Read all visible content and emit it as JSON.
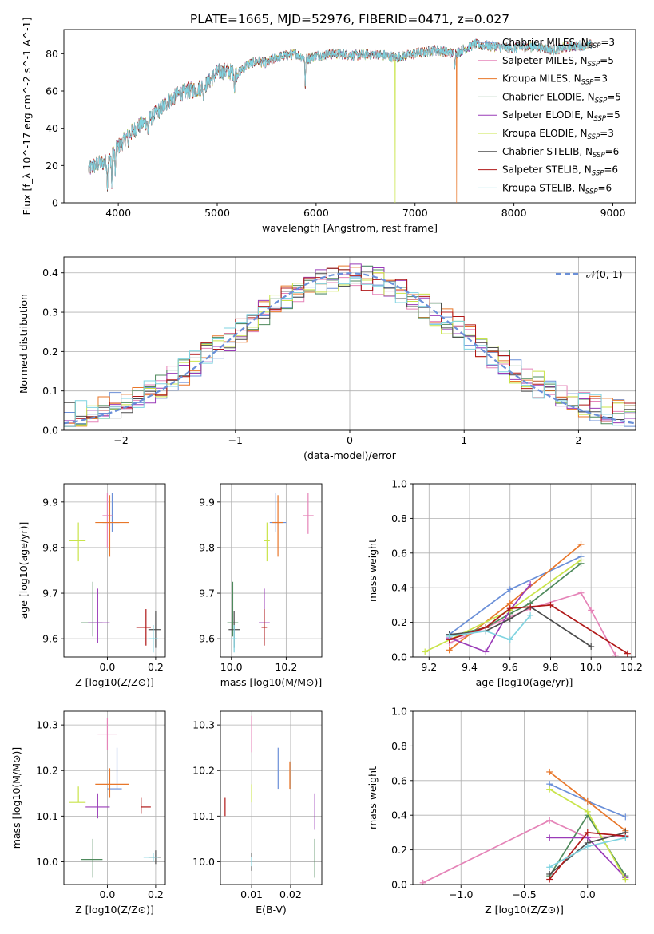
{
  "figure": {
    "title": "PLATE=1665, MJD=52976, FIBERID=0471, z=0.027"
  },
  "model_colors": {
    "Chabrier MILES": "#6a8fd8",
    "Salpeter MILES": "#e584b8",
    "Kroupa MILES": "#e8772a",
    "Chabrier ELODIE": "#4e8a5c",
    "Salpeter ELODIE": "#9a3bb8",
    "Kroupa ELODIE": "#c9e44a",
    "Chabrier STELIB": "#4c4c4c",
    "Salpeter STELIB": "#b01818",
    "Kroupa STELIB": "#7fd3e0"
  },
  "chart_data": [
    {
      "id": "spectrum",
      "type": "line",
      "title": "PLATE=1665, MJD=52976, FIBERID=0471, z=0.027",
      "xlabel": "wavelength [Angstrom, rest frame]",
      "ylabel": "Flux [f_λ 10^-17 erg cm^-2 s^-1 A^-1]",
      "xlim": [
        3450,
        9230
      ],
      "ylim": [
        0,
        93
      ],
      "xticks": [
        4000,
        5000,
        6000,
        7000,
        8000,
        9000
      ],
      "yticks": [
        0,
        20,
        40,
        60,
        80
      ],
      "grid": false,
      "legend_placement": "top-right",
      "legend": [
        "Chabrier MILES, N_SSP=3",
        "Salpeter MILES, N_SSP=5",
        "Kroupa MILES, N_SSP=3",
        "Chabrier ELODIE, N_SSP=5",
        "Salpeter ELODIE, N_SSP=5",
        "Kroupa ELODIE, N_SSP=3",
        "Chabrier STELIB, N_SSP=6",
        "Salpeter STELIB, N_SSP=6",
        "Kroupa STELIB, N_SSP=6"
      ],
      "continuum": {
        "wavelength": [
          3700,
          3800,
          3900,
          4000,
          4100,
          4200,
          4300,
          4400,
          4500,
          4600,
          4700,
          4800,
          4900,
          5000,
          5100,
          5200,
          5300,
          5400,
          5500,
          5600,
          5700,
          5800,
          5900,
          6000,
          6200,
          6400,
          6600,
          6800,
          7000,
          7200,
          7400,
          7600,
          7800,
          8000,
          8200,
          8400,
          8600,
          8800
        ],
        "flux": [
          18,
          21,
          22,
          30,
          36,
          41,
          44,
          49,
          54,
          58,
          60,
          61,
          64,
          70,
          71,
          69,
          74,
          76,
          75,
          78,
          79,
          80,
          77,
          79,
          80,
          79,
          80,
          78,
          80,
          82,
          80,
          85,
          84,
          83,
          84,
          82,
          84,
          85
        ]
      },
      "absorption_features": [
        {
          "wavelength": 3890,
          "flux": 5
        },
        {
          "wavelength": 3934,
          "flux": 8
        },
        {
          "wavelength": 3969,
          "flux": 12
        },
        {
          "wavelength": 4102,
          "flux": 30
        },
        {
          "wavelength": 4300,
          "flux": 37
        },
        {
          "wavelength": 4861,
          "flux": 55
        },
        {
          "wavelength": 5175,
          "flux": 58
        },
        {
          "wavelength": 5890,
          "flux": 62
        },
        {
          "wavelength": 7400,
          "flux": 71
        }
      ],
      "artifacts": [
        {
          "series": "Kroupa ELODIE",
          "wavelength": 6800,
          "flux": 0
        },
        {
          "series": "Kroupa MILES",
          "wavelength": 7420,
          "flux": 0
        }
      ]
    },
    {
      "id": "residuals",
      "type": "histogram",
      "xlabel": "(data-model)/error",
      "ylabel": "Normed distribution",
      "xlim": [
        -2.5,
        2.5
      ],
      "ylim": [
        0,
        0.44
      ],
      "xticks": [
        -2,
        -1,
        0,
        1,
        2
      ],
      "yticks": [
        0.0,
        0.1,
        0.2,
        0.3,
        0.4
      ],
      "grid": true,
      "legend_placement": "top-right",
      "legend": [
        "𝒩(0, 1)"
      ],
      "bin_width": 0.1,
      "reference_curve": {
        "name": "𝒩(0, 1)",
        "mean": 0,
        "sigma": 1,
        "style": "dashed",
        "color": "#6a8fd8"
      }
    },
    {
      "id": "age_vs_Z",
      "type": "errorbar",
      "xlabel": "Z [log10(Z/Z⊙)]",
      "ylabel": "age [log10(age/yr)]",
      "xlim": [
        -0.18,
        0.24
      ],
      "ylim": [
        9.56,
        9.94
      ],
      "xticks": [
        0.0,
        0.2
      ],
      "yticks": [
        9.6,
        9.7,
        9.8,
        9.9
      ],
      "grid": true,
      "points": [
        {
          "series": "Chabrier MILES",
          "x": 0.02,
          "y": 9.855,
          "xerr": [
            0.04,
            0.03
          ],
          "yerr": [
            0.02,
            0.065
          ]
        },
        {
          "series": "Salpeter MILES",
          "x": 0.0,
          "y": 9.87,
          "xerr": [
            0.02,
            0.02
          ],
          "yerr": [
            0.07,
            0.05
          ]
        },
        {
          "series": "Kroupa MILES",
          "x": 0.01,
          "y": 9.855,
          "xerr": [
            0.06,
            0.08
          ],
          "yerr": [
            0.075,
            0.06
          ]
        },
        {
          "series": "Chabrier ELODIE",
          "x": -0.06,
          "y": 9.635,
          "xerr": [
            0.05,
            0.04
          ],
          "yerr": [
            0.03,
            0.09
          ]
        },
        {
          "series": "Salpeter ELODIE",
          "x": -0.04,
          "y": 9.635,
          "xerr": [
            0.04,
            0.05
          ],
          "yerr": [
            0.045,
            0.075
          ]
        },
        {
          "series": "Kroupa ELODIE",
          "x": -0.12,
          "y": 9.815,
          "xerr": [
            0.04,
            0.03
          ],
          "yerr": [
            0.045,
            0.04
          ]
        },
        {
          "series": "Chabrier STELIB",
          "x": 0.2,
          "y": 9.62,
          "xerr": [
            0.03,
            0.02
          ],
          "yerr": [
            0.04,
            0.04
          ]
        },
        {
          "series": "Salpeter STELIB",
          "x": 0.16,
          "y": 9.625,
          "xerr": [
            0.04,
            0.02
          ],
          "yerr": [
            0.04,
            0.04
          ]
        },
        {
          "series": "Kroupa STELIB",
          "x": 0.19,
          "y": 9.6,
          "xerr": [
            0.02,
            0.02
          ],
          "yerr": [
            0.03,
            0.03
          ]
        }
      ]
    },
    {
      "id": "age_vs_mass",
      "type": "errorbar",
      "xlabel": "mass [log10(M/M⊙)]",
      "ylabel": "",
      "xlim": [
        9.96,
        10.33
      ],
      "ylim": [
        9.56,
        9.94
      ],
      "xticks": [
        10.0,
        10.2
      ],
      "yticks": [
        9.6,
        9.7,
        9.8,
        9.9
      ],
      "grid": true,
      "points": [
        {
          "series": "Chabrier MILES",
          "x": 10.16,
          "y": 9.855,
          "xerr": [
            0.02,
            0.04
          ],
          "yerr": [
            0.02,
            0.065
          ]
        },
        {
          "series": "Salpeter MILES",
          "x": 10.28,
          "y": 9.87,
          "xerr": [
            0.02,
            0.02
          ],
          "yerr": [
            0.04,
            0.05
          ]
        },
        {
          "series": "Kroupa MILES",
          "x": 10.17,
          "y": 9.855,
          "xerr": [
            0.02,
            0.02
          ],
          "yerr": [
            0.075,
            0.06
          ]
        },
        {
          "series": "Chabrier ELODIE",
          "x": 10.005,
          "y": 9.635,
          "xerr": [
            0.02,
            0.02
          ],
          "yerr": [
            0.03,
            0.09
          ]
        },
        {
          "series": "Salpeter ELODIE",
          "x": 10.12,
          "y": 9.635,
          "xerr": [
            0.02,
            0.02
          ],
          "yerr": [
            0.045,
            0.075
          ]
        },
        {
          "series": "Kroupa ELODIE",
          "x": 10.13,
          "y": 9.815,
          "xerr": [
            0.01,
            0.01
          ],
          "yerr": [
            0.045,
            0.04
          ]
        },
        {
          "series": "Chabrier STELIB",
          "x": 10.01,
          "y": 9.62,
          "xerr": [
            0.02,
            0.02
          ],
          "yerr": [
            0.04,
            0.04
          ]
        },
        {
          "series": "Salpeter STELIB",
          "x": 10.12,
          "y": 9.625,
          "xerr": [
            0.01,
            0.01
          ],
          "yerr": [
            0.04,
            0.04
          ]
        },
        {
          "series": "Kroupa STELIB",
          "x": 10.01,
          "y": 9.6,
          "xerr": [
            0.01,
            0.01
          ],
          "yerr": [
            0.03,
            0.03
          ]
        }
      ]
    },
    {
      "id": "massweight_vs_age",
      "type": "line",
      "xlabel": "age [log10(age/yr)]",
      "ylabel": "mass weight",
      "xlim": [
        9.12,
        10.22
      ],
      "ylim": [
        0,
        1.0
      ],
      "xticks": [
        9.2,
        9.4,
        9.6,
        9.8,
        10.0,
        10.2
      ],
      "yticks": [
        0.0,
        0.2,
        0.4,
        0.6,
        0.8,
        1.0
      ],
      "grid": true,
      "series": [
        {
          "name": "Chabrier MILES",
          "x": [
            9.3,
            9.6,
            9.95
          ],
          "y": [
            0.13,
            0.39,
            0.58
          ]
        },
        {
          "name": "Salpeter MILES",
          "x": [
            9.3,
            9.48,
            9.7,
            9.95,
            10.0,
            10.12
          ],
          "y": [
            0.08,
            0.17,
            0.28,
            0.37,
            0.27,
            0.01
          ]
        },
        {
          "name": "Kroupa MILES",
          "x": [
            9.3,
            9.6,
            9.95
          ],
          "y": [
            0.04,
            0.31,
            0.65
          ]
        },
        {
          "name": "Chabrier ELODIE",
          "x": [
            9.3,
            9.48,
            9.6,
            9.7,
            9.95
          ],
          "y": [
            0.12,
            0.17,
            0.25,
            0.31,
            0.54
          ]
        },
        {
          "name": "Salpeter ELODIE",
          "x": [
            9.3,
            9.48,
            9.6,
            9.7
          ],
          "y": [
            0.11,
            0.03,
            0.27,
            0.42
          ]
        },
        {
          "name": "Kroupa ELODIE",
          "x": [
            9.18,
            9.6,
            9.95
          ],
          "y": [
            0.03,
            0.27,
            0.56
          ]
        },
        {
          "name": "Chabrier STELIB",
          "x": [
            9.3,
            9.48,
            9.6,
            9.7,
            10.0
          ],
          "y": [
            0.13,
            0.15,
            0.22,
            0.29,
            0.06
          ]
        },
        {
          "name": "Salpeter STELIB",
          "x": [
            9.3,
            9.48,
            9.6,
            9.7,
            9.8,
            10.18
          ],
          "y": [
            0.1,
            0.17,
            0.28,
            0.29,
            0.3,
            0.02
          ]
        },
        {
          "name": "Kroupa STELIB",
          "x": [
            9.3,
            9.48,
            9.6,
            9.7
          ],
          "y": [
            0.12,
            0.15,
            0.1,
            0.24
          ]
        }
      ]
    },
    {
      "id": "mass_vs_Z",
      "type": "errorbar",
      "xlabel": "Z [log10(Z/Z⊙)]",
      "ylabel": "mass [log10(M/M⊙)]",
      "xlim": [
        -0.18,
        0.24
      ],
      "ylim": [
        9.95,
        10.33
      ],
      "xticks": [
        0.0,
        0.2
      ],
      "yticks": [
        10.0,
        10.1,
        10.2,
        10.3
      ],
      "grid": true,
      "points": [
        {
          "series": "Chabrier MILES",
          "x": 0.04,
          "y": 10.16,
          "xerr": [
            0.04,
            0.02
          ],
          "yerr": [
            0.0,
            0.09
          ]
        },
        {
          "series": "Salpeter MILES",
          "x": 0.0,
          "y": 10.28,
          "xerr": [
            0.04,
            0.04
          ],
          "yerr": [
            0.035,
            0.035
          ]
        },
        {
          "series": "Kroupa MILES",
          "x": 0.01,
          "y": 10.17,
          "xerr": [
            0.06,
            0.08
          ],
          "yerr": [
            0.03,
            0.035
          ]
        },
        {
          "series": "Chabrier ELODIE",
          "x": -0.06,
          "y": 10.005,
          "xerr": [
            0.05,
            0.04
          ],
          "yerr": [
            0.04,
            0.045
          ]
        },
        {
          "series": "Salpeter ELODIE",
          "x": -0.04,
          "y": 10.12,
          "xerr": [
            0.05,
            0.05
          ],
          "yerr": [
            0.025,
            0.03
          ]
        },
        {
          "series": "Kroupa ELODIE",
          "x": -0.12,
          "y": 10.13,
          "xerr": [
            0.04,
            0.03
          ],
          "yerr": [
            0.0,
            0.035
          ]
        },
        {
          "series": "Chabrier STELIB",
          "x": 0.2,
          "y": 10.01,
          "xerr": [
            0.03,
            0.02
          ],
          "yerr": [
            0.015,
            0.015
          ]
        },
        {
          "series": "Salpeter STELIB",
          "x": 0.14,
          "y": 10.12,
          "xerr": [
            0.0,
            0.04
          ],
          "yerr": [
            0.015,
            0.02
          ]
        },
        {
          "series": "Kroupa STELIB",
          "x": 0.19,
          "y": 10.01,
          "xerr": [
            0.04,
            0.02
          ],
          "yerr": [
            0.01,
            0.01
          ]
        }
      ]
    },
    {
      "id": "mass_vs_ebv",
      "type": "errorbar",
      "xlabel": "E(B-V)",
      "ylabel": "",
      "xlim": [
        0.002,
        0.028
      ],
      "ylim": [
        9.95,
        10.33
      ],
      "xticks": [
        0.01,
        0.02
      ],
      "yticks": [
        10.0,
        10.1,
        10.2,
        10.3
      ],
      "grid": true,
      "points": [
        {
          "series": "Chabrier MILES",
          "x": 0.0168,
          "y": 10.205,
          "xerr": [
            0,
            0
          ],
          "yerr": [
            0.045,
            0.045
          ]
        },
        {
          "series": "Salpeter MILES",
          "x": 0.01,
          "y": 10.28,
          "xerr": [
            0,
            0
          ],
          "yerr": [
            0.04,
            0.04
          ]
        },
        {
          "series": "Kroupa MILES",
          "x": 0.0198,
          "y": 10.19,
          "xerr": [
            0,
            0
          ],
          "yerr": [
            0.03,
            0.03
          ]
        },
        {
          "series": "Chabrier ELODIE",
          "x": 0.0262,
          "y": 10.005,
          "xerr": [
            0,
            0
          ],
          "yerr": [
            0.04,
            0.045
          ]
        },
        {
          "series": "Salpeter ELODIE",
          "x": 0.0262,
          "y": 10.11,
          "xerr": [
            0,
            0
          ],
          "yerr": [
            0.04,
            0.04
          ]
        },
        {
          "series": "Kroupa ELODIE",
          "x": 0.01,
          "y": 10.15,
          "xerr": [
            0,
            0
          ],
          "yerr": [
            0.02,
            0.02
          ]
        },
        {
          "series": "Chabrier STELIB",
          "x": 0.01,
          "y": 10.0,
          "xerr": [
            0,
            0
          ],
          "yerr": [
            0.02,
            0.02
          ]
        },
        {
          "series": "Salpeter STELIB",
          "x": 0.0032,
          "y": 10.12,
          "xerr": [
            0,
            0
          ],
          "yerr": [
            0.02,
            0.02
          ]
        },
        {
          "series": "Kroupa STELIB",
          "x": 0.01,
          "y": 10.0,
          "xerr": [
            0,
            0
          ],
          "yerr": [
            0.01,
            0.01
          ]
        }
      ]
    },
    {
      "id": "massweight_vs_Z",
      "type": "line",
      "xlabel": "Z [log10(Z/Z⊙)]",
      "ylabel": "mass weight",
      "xlim": [
        -1.38,
        0.38
      ],
      "ylim": [
        0,
        1.0
      ],
      "xticks": [
        -1.0,
        -0.5,
        0.0
      ],
      "yticks": [
        0.0,
        0.2,
        0.4,
        0.6,
        0.8,
        1.0
      ],
      "grid": true,
      "series": [
        {
          "name": "Chabrier MILES",
          "x": [
            -0.3,
            0.0,
            0.3
          ],
          "y": [
            0.58,
            0.48,
            0.39
          ]
        },
        {
          "name": "Salpeter MILES",
          "x": [
            -1.3,
            -0.3,
            0.0,
            0.3
          ],
          "y": [
            0.01,
            0.37,
            0.27,
            0.28
          ]
        },
        {
          "name": "Kroupa MILES",
          "x": [
            -0.3,
            0.0,
            0.3
          ],
          "y": [
            0.65,
            0.48,
            0.31
          ]
        },
        {
          "name": "Chabrier ELODIE",
          "x": [
            -0.3,
            0.0,
            0.3
          ],
          "y": [
            0.05,
            0.4,
            0.05
          ]
        },
        {
          "name": "Salpeter ELODIE",
          "x": [
            -0.3,
            0.0,
            0.3
          ],
          "y": [
            0.27,
            0.27,
            0.04
          ]
        },
        {
          "name": "Kroupa ELODIE",
          "x": [
            -0.3,
            0.0,
            0.3
          ],
          "y": [
            0.55,
            0.42,
            0.03
          ]
        },
        {
          "name": "Chabrier STELIB",
          "x": [
            -0.3,
            0.0,
            0.3
          ],
          "y": [
            0.06,
            0.24,
            0.3
          ]
        },
        {
          "name": "Salpeter STELIB",
          "x": [
            -0.3,
            0.0,
            0.3
          ],
          "y": [
            0.03,
            0.3,
            0.28
          ]
        },
        {
          "name": "Kroupa STELIB",
          "x": [
            -0.3,
            0.0,
            0.3
          ],
          "y": [
            0.1,
            0.22,
            0.27
          ]
        }
      ]
    }
  ]
}
